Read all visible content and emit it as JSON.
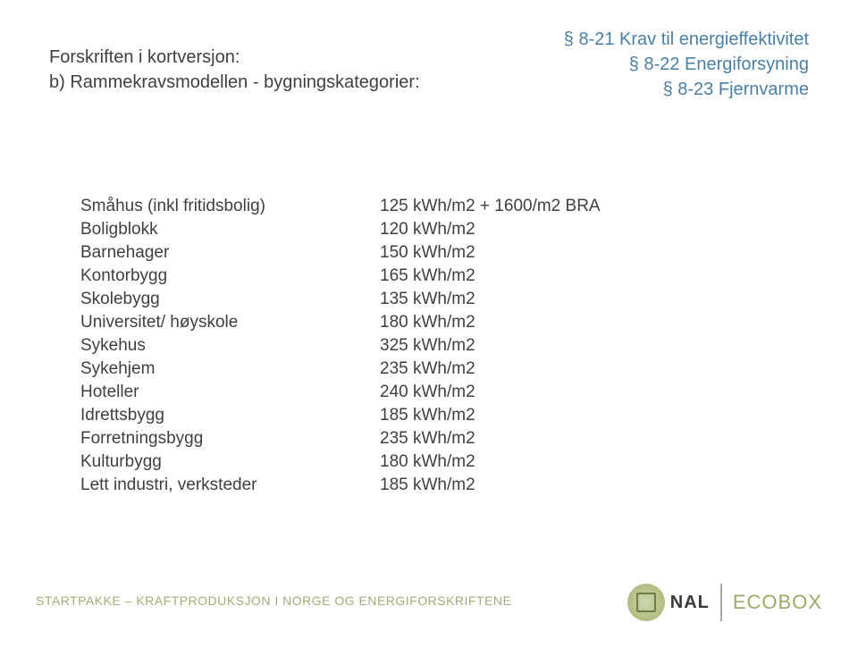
{
  "header": {
    "left_line1": "Forskriften i kortversjon:",
    "left_line2": "b) Rammekravsmodellen - bygningskategorier:",
    "right_line1": "§ 8-21 Krav til energieffektivitet",
    "right_line2": "§ 8-22 Energiforsyning",
    "right_line3": "§ 8-23 Fjernvarme"
  },
  "table": {
    "rows": [
      {
        "label": "Småhus (inkl fritidsbolig)",
        "value": "125 kWh/m2 + 1600/m2 BRA"
      },
      {
        "label": "Boligblokk",
        "value": "120 kWh/m2"
      },
      {
        "label": "Barnehager",
        "value": "150 kWh/m2"
      },
      {
        "label": "Kontorbygg",
        "value": "165 kWh/m2"
      },
      {
        "label": "Skolebygg",
        "value": "135 kWh/m2"
      },
      {
        "label": "Universitet/ høyskole",
        "value": "180 kWh/m2"
      },
      {
        "label": "Sykehus",
        "value": "325 kWh/m2"
      },
      {
        "label": "Sykehjem",
        "value": "235 kWh/m2"
      },
      {
        "label": "Hoteller",
        "value": "240 kWh/m2"
      },
      {
        "label": "Idrettsbygg",
        "value": "185 kWh/m2"
      },
      {
        "label": "Forretningsbygg",
        "value": "235 kWh/m2"
      },
      {
        "label": "Kulturbygg",
        "value": "180 kWh/m2"
      },
      {
        "label": "Lett industri, verksteder",
        "value": "185 kWh/m2"
      }
    ]
  },
  "footer": {
    "text": "STARTPAKKE – KRAFTPRODUKSJON I NORGE OG ENERGIFORSKRIFTENE",
    "nal": "NAL",
    "ecobox": "ECOBOX"
  },
  "colors": {
    "body_text": "#3f3f3f",
    "header_right": "#4a7fa5",
    "footer_text": "#a0ad78",
    "ecobox_text": "#9aaa68",
    "background": "#ffffff"
  }
}
